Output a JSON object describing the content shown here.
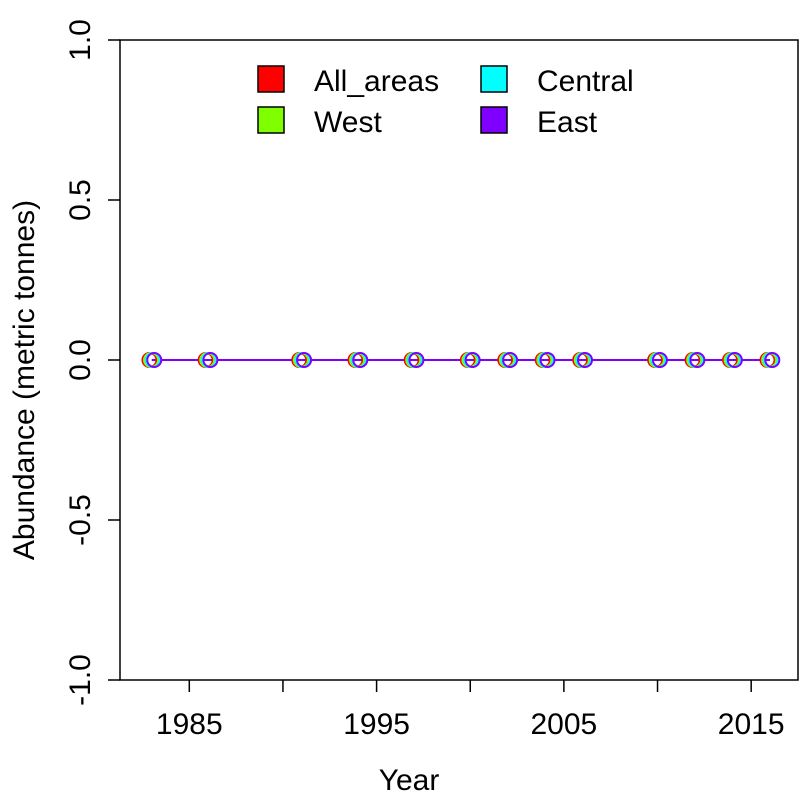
{
  "chart_data": {
    "type": "line",
    "title": "",
    "xlabel": "Year",
    "ylabel": "Abundance (metric tonnes)",
    "xlim": [
      1981.3,
      2017.5
    ],
    "ylim": [
      -1.0,
      1.0
    ],
    "x_ticks": [
      1980,
      1985,
      1990,
      1995,
      2000,
      2005,
      2010,
      2015
    ],
    "x_tick_labels": [
      "1985",
      "1995",
      "2005",
      "2015"
    ],
    "x_tick_label_values": [
      1985,
      1995,
      2005,
      2015
    ],
    "y_ticks": [
      -1.0,
      -0.5,
      0.0,
      0.5,
      1.0
    ],
    "y_tick_labels": [
      "-1.0",
      "-0.5",
      "0.0",
      "0.5",
      "1.0"
    ],
    "legend_position": "top",
    "x": [
      1983,
      1986,
      1991,
      1994,
      1997,
      2000,
      2002,
      2004,
      2006,
      2010,
      2012,
      2014,
      2016
    ],
    "series": [
      {
        "name": "All_areas",
        "color": "#FF0000",
        "values": [
          0,
          0,
          0,
          0,
          0,
          0,
          0,
          0,
          0,
          0,
          0,
          0,
          0
        ]
      },
      {
        "name": "West",
        "color": "#80FF00",
        "values": [
          0,
          0,
          0,
          0,
          0,
          0,
          0,
          0,
          0,
          0,
          0,
          0,
          0
        ]
      },
      {
        "name": "Central",
        "color": "#00FFFF",
        "values": [
          0,
          0,
          0,
          0,
          0,
          0,
          0,
          0,
          0,
          0,
          0,
          0,
          0
        ]
      },
      {
        "name": "East",
        "color": "#8000FF",
        "values": [
          0,
          0,
          0,
          0,
          0,
          0,
          0,
          0,
          0,
          0,
          0,
          0,
          0
        ]
      }
    ]
  }
}
